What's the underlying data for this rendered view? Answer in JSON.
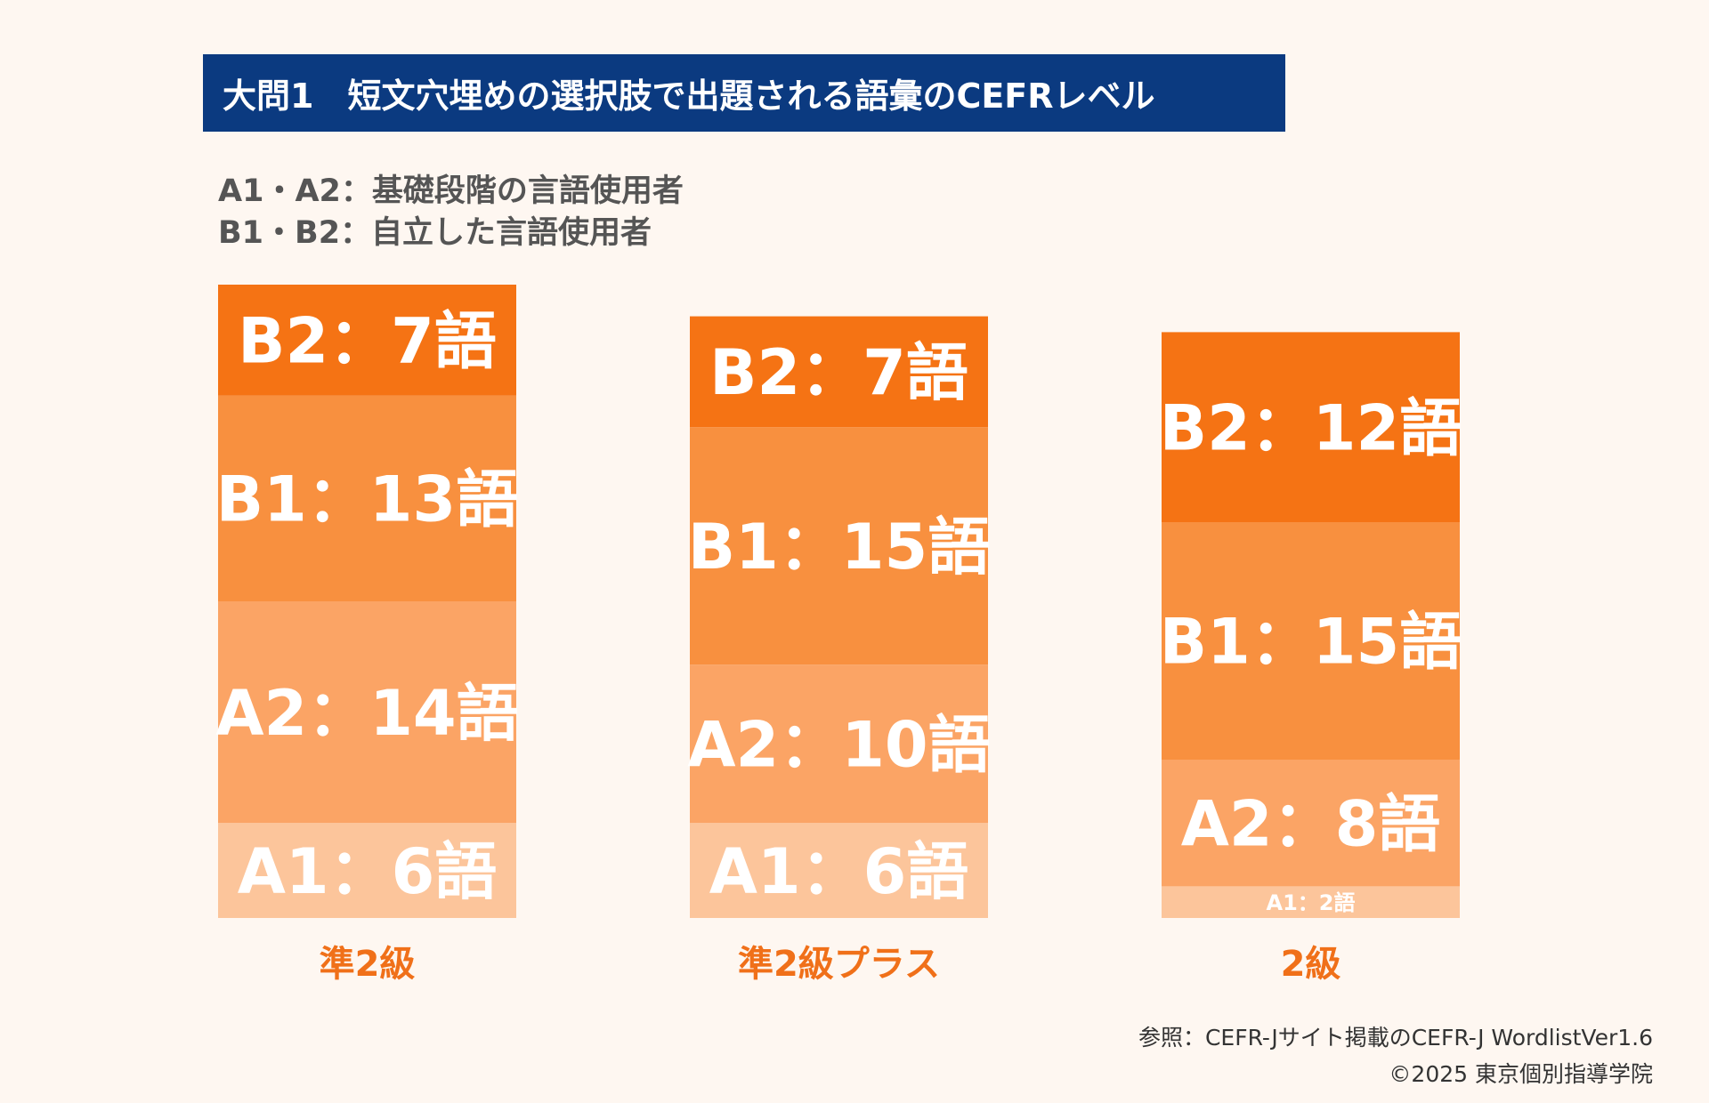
{
  "title": "大問1　短文穴埋めの選択肢で出題される語彙のCEFRレベル",
  "legend_notes": [
    "A1・A2：基礎段階の言語使用者",
    "B1・B2：自立した言語使用者"
  ],
  "colors": {
    "title_bg": "#0b3a80",
    "B2": "#f57314",
    "B1": "#f8903f",
    "A2": "#fba465",
    "A1": "#fcc59b",
    "category_label": "#f07019"
  },
  "chart_data": {
    "type": "bar",
    "stacked": true,
    "categories": [
      "準2級",
      "準2級プラス",
      "2級"
    ],
    "series": [
      {
        "name": "A1",
        "values": [
          6,
          6,
          2
        ],
        "labels": [
          "A1：6語",
          "A1：6語",
          "A1：2語"
        ]
      },
      {
        "name": "A2",
        "values": [
          14,
          10,
          8
        ],
        "labels": [
          "A2：14語",
          "A2：10語",
          "A2：8語"
        ]
      },
      {
        "name": "B1",
        "values": [
          13,
          15,
          15
        ],
        "labels": [
          "B1：13語",
          "B1：15語",
          "B1：15語"
        ]
      },
      {
        "name": "B2",
        "values": [
          7,
          7,
          12
        ],
        "labels": [
          "B2：7語",
          "B2：7語",
          "B2：12語"
        ]
      }
    ]
  },
  "footer": {
    "source": "参照：CEFR-Jサイト掲載のCEFR-J WordlistVer1.6",
    "copyright": "©2025 東京個別指導学院"
  }
}
